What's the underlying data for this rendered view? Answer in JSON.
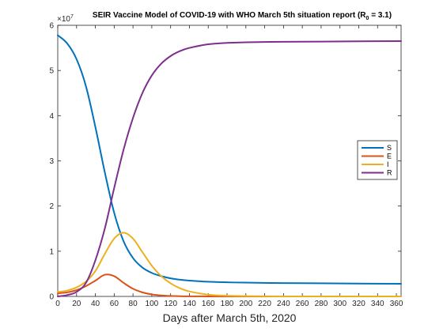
{
  "chart_data": {
    "type": "line",
    "title_main": "SEIR Vaccine Model of COVID-19 with WHO March 5th situation report (R",
    "title_sub": "0",
    "title_tail": " = 3.1)",
    "xlabel": "Days after March 5th, 2020",
    "ylabel": "",
    "y_exponent_base": "×10",
    "y_exponent_power": "7",
    "xlim": [
      0,
      365
    ],
    "ylim": [
      0,
      60000000
    ],
    "x_ticks": [
      0,
      20,
      40,
      60,
      80,
      100,
      120,
      140,
      160,
      180,
      200,
      220,
      240,
      260,
      280,
      300,
      320,
      340,
      360
    ],
    "x_tick_labels": [
      "0",
      "20",
      "40",
      "60",
      "80",
      "100",
      "120",
      "140",
      "160",
      "180",
      "200",
      "220",
      "240",
      "260",
      "280",
      "300",
      "320",
      "340",
      "360"
    ],
    "y_ticks": [
      0,
      10000000,
      20000000,
      30000000,
      40000000,
      50000000,
      60000000
    ],
    "y_tick_labels": [
      "0",
      "1",
      "2",
      "3",
      "4",
      "5",
      "6"
    ],
    "grid": false,
    "legend_position": "right",
    "x": [
      0,
      10,
      20,
      30,
      40,
      50,
      60,
      70,
      80,
      90,
      100,
      110,
      120,
      130,
      140,
      160,
      180,
      200,
      240,
      280,
      320,
      365
    ],
    "series": [
      {
        "name": "S",
        "color": "#0072BD",
        "values": [
          57800000,
          56000000,
          52500000,
          46500000,
          37500000,
          27500000,
          18500000,
          12200000,
          8500000,
          6400000,
          5200000,
          4500000,
          4000000,
          3700000,
          3500000,
          3250000,
          3120000,
          3050000,
          2950000,
          2900000,
          2850000,
          2800000
        ]
      },
      {
        "name": "E",
        "color": "#D95319",
        "values": [
          700000,
          900000,
          1400000,
          2300000,
          3500000,
          4800000,
          4500000,
          3000000,
          1700000,
          900000,
          450000,
          220000,
          110000,
          50000,
          25000,
          8000,
          2000,
          500,
          0,
          0,
          0,
          0
        ]
      },
      {
        "name": "I",
        "color": "#EDB120",
        "values": [
          1000000,
          1300000,
          2000000,
          3300000,
          5600000,
          9400000,
          12800000,
          14100000,
          12800000,
          9800000,
          6800000,
          4500000,
          2900000,
          1800000,
          1100000,
          400000,
          150000,
          60000,
          10000,
          0,
          0,
          0
        ]
      },
      {
        "name": "R",
        "color": "#7E2F8E",
        "values": [
          0,
          300000,
          1000000,
          3000000,
          8000000,
          15000000,
          24000000,
          32500000,
          39500000,
          45000000,
          48900000,
          51500000,
          53200000,
          54300000,
          55000000,
          55800000,
          56100000,
          56250000,
          56350000,
          56400000,
          56450000,
          56500000
        ]
      }
    ]
  }
}
